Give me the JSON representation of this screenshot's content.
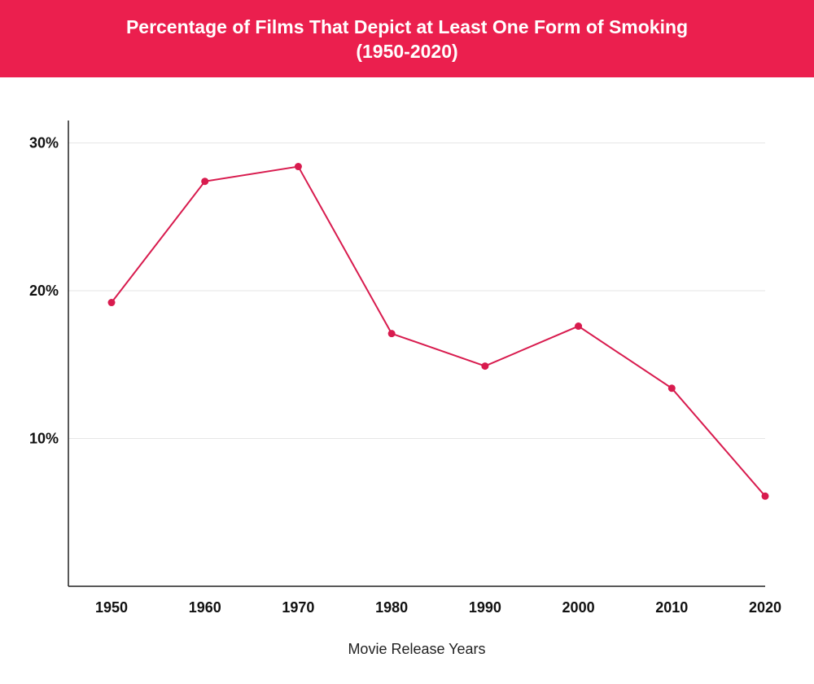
{
  "chart_data": {
    "type": "line",
    "title": "Percentage of Films That Depict at Least One Form of Smoking",
    "subtitle": "(1950-2020)",
    "xlabel": "Movie Release Years",
    "ylabel": "",
    "categories": [
      "1950",
      "1960",
      "1970",
      "1980",
      "1990",
      "2000",
      "2010",
      "2020"
    ],
    "values": [
      19.2,
      27.4,
      28.4,
      17.1,
      14.9,
      17.6,
      13.4,
      6.1
    ],
    "ylim": [
      0,
      30
    ],
    "yticks": [
      10,
      20,
      30
    ],
    "ytick_labels": [
      "10%",
      "20%",
      "30%"
    ],
    "grid": true,
    "colors": {
      "header": "#EB1F4E",
      "line": "#D81B4E",
      "grid": "#E6E6E6"
    }
  }
}
